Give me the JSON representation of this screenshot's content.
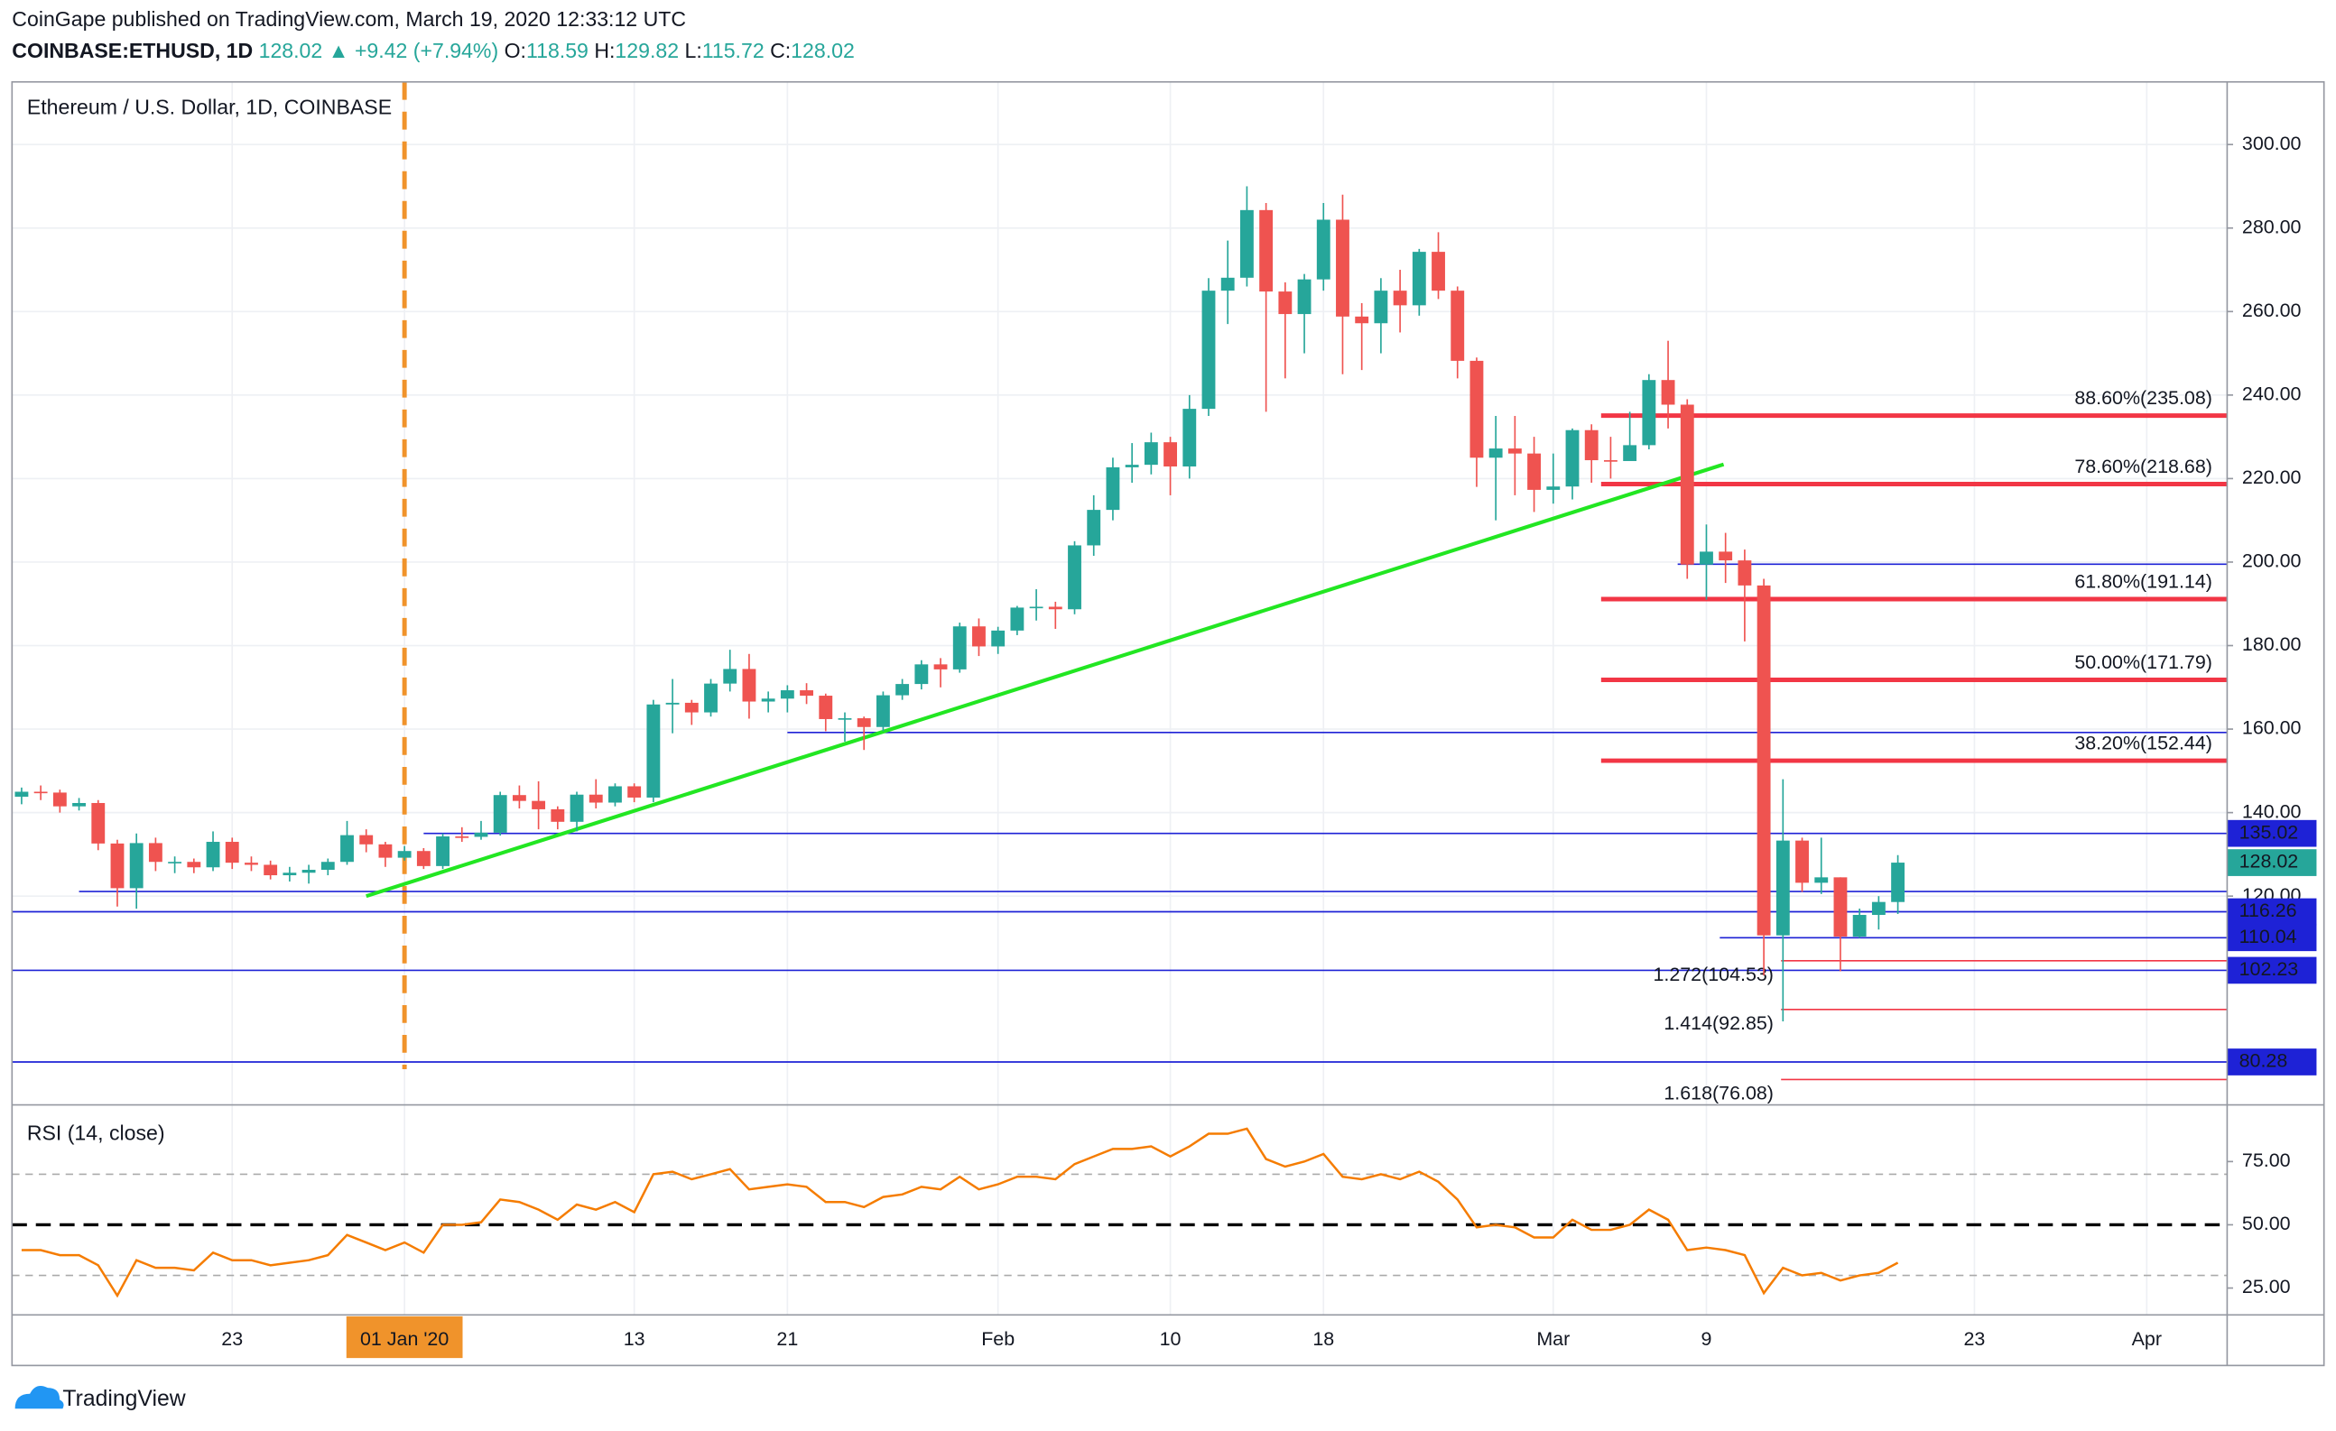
{
  "chart_data": [
    {
      "type": "candlestick",
      "publisher": "CoinGape published on TradingView.com, March 19, 2020 12:33:12 UTC",
      "symbol": "COINBASE:ETHUSD, 1D",
      "last_change": "▲ +9.42 (+7.94%)",
      "ohlc_labels": [
        "O:",
        "H:",
        "L:",
        "C:"
      ],
      "title": "Ethereum / U.S. Dollar, 1D, COINBASE",
      "up_color": "#26a69a",
      "down_color": "#ef5350",
      "open": [
        143.8,
        145.0,
        144.8,
        141.5,
        142.3,
        132.6,
        121.9,
        132.7,
        128.2,
        128.2,
        126.9,
        133.0,
        128.0,
        127.5,
        125.0,
        125.6,
        126.3,
        128.2,
        134.6,
        132.4,
        129.2,
        130.8,
        127.2,
        134.3,
        134.2,
        135.2,
        144.2,
        142.8,
        140.8,
        137.8,
        144.3,
        142.4,
        146.3,
        143.6,
        165.9,
        166.3,
        164.0,
        170.9,
        174.4,
        166.6,
        167.3,
        169.3,
        168.0,
        162.4,
        162.6,
        160.5,
        168.1,
        170.8,
        175.5,
        174.3,
        184.6,
        179.8,
        183.6,
        189.1,
        189.3,
        188.7,
        204.0,
        212.5,
        222.7,
        223.3,
        228.7,
        222.9,
        236.7,
        265.0,
        268.1,
        284.3,
        264.8,
        259.4,
        267.7,
        282.0,
        258.8,
        257.2,
        265.0,
        261.5,
        274.3,
        265.0,
        248.2,
        225.0,
        227.2,
        226.0,
        217.3,
        218.1,
        231.6,
        224.4,
        224.2,
        228.0,
        243.6,
        237.7,
        199.4,
        202.5,
        200.4,
        194.4,
        110.6,
        133.3,
        123.2,
        124.5,
        110.3,
        115.5,
        118.59
      ],
      "high": [
        146,
        146.5,
        145.5,
        143.5,
        143,
        133.5,
        135,
        134,
        129.5,
        129,
        135.5,
        134,
        129.5,
        128.5,
        127,
        127.5,
        129,
        138,
        136,
        133,
        132,
        131.5,
        135,
        136.5,
        138,
        145,
        146.5,
        147.5,
        141.5,
        145,
        148,
        147,
        147,
        167,
        172,
        167,
        172,
        179,
        178,
        169,
        170.5,
        171,
        168.5,
        164,
        163,
        169,
        172,
        176.5,
        177,
        185.5,
        186.5,
        184.5,
        189.5,
        193.5,
        190.5,
        205,
        216,
        225,
        228.5,
        231,
        230,
        240,
        268,
        277,
        290,
        286,
        267,
        269,
        286,
        288,
        262,
        268,
        270,
        275,
        279,
        266,
        249,
        235,
        235,
        230,
        226,
        232,
        233,
        230,
        236,
        245,
        253,
        239,
        209,
        207,
        203,
        196,
        148,
        134,
        134,
        124.5,
        117,
        120,
        129.82
      ],
      "low": [
        142,
        143,
        140,
        140.5,
        131,
        117.5,
        117,
        126,
        125.5,
        125.5,
        126,
        126.5,
        126,
        124,
        123.5,
        123,
        125,
        127.5,
        130.5,
        127,
        128.5,
        126.5,
        126.5,
        133,
        133.5,
        134.5,
        141,
        136,
        136,
        135.5,
        141,
        141.5,
        142.5,
        142.5,
        159,
        161,
        163,
        169,
        162.5,
        164,
        164,
        166,
        159.5,
        157,
        155,
        159.5,
        167,
        169.5,
        170,
        173.5,
        177.5,
        178,
        182.5,
        186,
        184,
        187.5,
        201.5,
        210,
        219,
        221,
        216,
        220,
        235,
        257,
        266,
        236,
        244,
        250,
        265,
        245,
        246,
        250,
        255,
        259,
        263,
        244,
        218,
        210,
        216,
        212,
        214,
        215,
        219,
        220,
        226,
        227,
        232,
        196,
        191,
        195,
        181,
        101,
        90,
        121,
        120.5,
        102,
        110,
        112,
        115.72
      ],
      "close": [
        145.0,
        144.8,
        141.5,
        142.3,
        132.6,
        121.9,
        132.7,
        128.2,
        128.2,
        126.9,
        133.0,
        128.0,
        127.5,
        125.0,
        125.6,
        126.3,
        128.2,
        134.6,
        132.4,
        129.2,
        130.8,
        127.2,
        134.3,
        134.2,
        135.2,
        144.2,
        142.8,
        140.8,
        137.8,
        144.3,
        142.4,
        146.3,
        143.6,
        165.9,
        166.3,
        164.0,
        170.9,
        174.4,
        166.6,
        167.3,
        169.3,
        168.0,
        162.4,
        162.6,
        160.5,
        168.1,
        170.8,
        175.5,
        174.3,
        184.6,
        179.8,
        183.6,
        189.1,
        189.3,
        188.7,
        204.0,
        212.5,
        222.7,
        223.3,
        228.7,
        222.9,
        236.7,
        265.0,
        268.1,
        284.3,
        264.8,
        259.4,
        267.7,
        282.0,
        258.8,
        257.2,
        265.0,
        261.5,
        274.3,
        265.0,
        248.2,
        225.0,
        227.2,
        226.0,
        217.3,
        218.1,
        231.6,
        224.4,
        224.2,
        228.0,
        243.6,
        237.7,
        199.4,
        202.5,
        200.4,
        194.4,
        110.6,
        133.3,
        123.2,
        124.5,
        110.3,
        115.5,
        118.6,
        128.02
      ],
      "xlim": [
        -0.5,
        115.2
      ],
      "xticks": [
        {
          "value": 11,
          "label": "23"
        },
        {
          "value": 20,
          "label": "01 Jan '20",
          "highlight": true
        },
        {
          "value": 32,
          "label": "13"
        },
        {
          "value": 40,
          "label": "21"
        },
        {
          "value": 51,
          "label": "Feb"
        },
        {
          "value": 60,
          "label": "10"
        },
        {
          "value": 68,
          "label": "18"
        },
        {
          "value": 80,
          "label": "Mar"
        },
        {
          "value": 88,
          "label": "9"
        },
        {
          "value": 102,
          "label": "23"
        },
        {
          "value": 111,
          "label": "Apr"
        }
      ],
      "ylim": [
        70,
        315
      ],
      "yticks": [
        {
          "value": 120,
          "label": "120.00"
        },
        {
          "value": 140,
          "label": "140.00"
        },
        {
          "value": 160,
          "label": "160.00"
        },
        {
          "value": 180,
          "label": "180.00"
        },
        {
          "value": 200,
          "label": "200.00"
        },
        {
          "value": 220,
          "label": "220.00"
        },
        {
          "value": 240,
          "label": "240.00"
        },
        {
          "value": 260,
          "label": "260.00"
        },
        {
          "value": 280,
          "label": "280.00"
        },
        {
          "value": 300,
          "label": "300.00"
        }
      ],
      "grid": true,
      "line_color": "#1e22d6",
      "support_lines": [
        {
          "value": 199.5,
          "x_from": 86.5
        },
        {
          "value": 159.2,
          "x_from": 40
        },
        {
          "value": 121.1,
          "x_from": 3
        }
      ],
      "price_lines": [
        {
          "value": 135.02,
          "x_from": 21
        },
        {
          "value": 116.26,
          "x_from": -0.5
        },
        {
          "value": 110.04,
          "x_from": 88.7
        },
        {
          "value": 102.23,
          "x_from": -0.5
        },
        {
          "value": 80.28,
          "x_from": -0.5
        }
      ],
      "fib_color": "#f23645",
      "fib_levels": [
        {
          "label": "88.60%(235.08)",
          "value": 235.08
        },
        {
          "label": "78.60%(218.68)",
          "value": 218.68
        },
        {
          "label": "61.80%(191.14)",
          "value": 191.14
        },
        {
          "label": "50.00%(171.79)",
          "value": 171.79
        },
        {
          "label": "38.20%(152.44)",
          "value": 152.44
        }
      ],
      "fib_x_from": 82.5,
      "extensions": [
        {
          "label": "1.272(104.53)",
          "value": 104.53
        },
        {
          "label": "1.414(92.85)",
          "value": 92.85
        },
        {
          "label": "1.618(76.08)",
          "value": 76.08
        }
      ],
      "extension_x_from": 91.9,
      "trendline": {
        "x": [
          18,
          88.9
        ],
        "y": [
          120,
          223.4
        ],
        "color": "#22e622"
      },
      "event_line": {
        "x": 20,
        "color": "#f0932b"
      }
    },
    {
      "type": "line",
      "title": "RSI (14, close)",
      "color": "#f57c00",
      "values": [
        40,
        40,
        38,
        38,
        34,
        22,
        36,
        33,
        33,
        32,
        39,
        36,
        36,
        34,
        35,
        36,
        38,
        46,
        43,
        40,
        43,
        39,
        50,
        50,
        51,
        60,
        59,
        56,
        52,
        58,
        56,
        59,
        55,
        70,
        71,
        68,
        70,
        72,
        64,
        65,
        66,
        65,
        59,
        59,
        57,
        61,
        62,
        65,
        64,
        69,
        64,
        66,
        69,
        69,
        68,
        74,
        77,
        80,
        80,
        81,
        77,
        81,
        86,
        86,
        88,
        76,
        73,
        75,
        78,
        69,
        68,
        70,
        68,
        71,
        67,
        60,
        49,
        50,
        49,
        45,
        45,
        52,
        48,
        48,
        50,
        56,
        52,
        40,
        41,
        40,
        38,
        23,
        33,
        30,
        31,
        28,
        30,
        31,
        35
      ],
      "ylim": [
        14.4,
        97.4
      ],
      "yticks": [
        {
          "value": 25,
          "label": "25.00"
        },
        {
          "value": 50,
          "label": "50.00"
        },
        {
          "value": 75,
          "label": "75.00"
        }
      ],
      "bands": [
        {
          "value": 70,
          "color": "#aaaaaa"
        },
        {
          "value": 50,
          "color": "#000000"
        },
        {
          "value": 30,
          "color": "#aaaaaa"
        }
      ]
    }
  ],
  "footer": {
    "logo": "TradingView"
  }
}
